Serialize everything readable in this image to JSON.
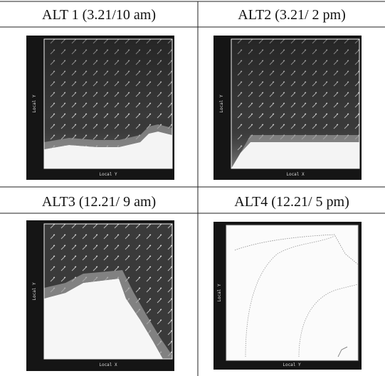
{
  "cells": [
    {
      "title": "ALT 1 (3.21/10 am)",
      "x_label": "Local Y",
      "y_label": "Local Y"
    },
    {
      "title": "ALT2 (3.21/ 2 pm)",
      "x_label": "Local X",
      "y_label": "Local Y"
    },
    {
      "title": "ALT3 (12.21/ 9 am)",
      "x_label": "Local X",
      "y_label": "Local Y"
    },
    {
      "title": "ALT4 (12.21/ 5 pm)",
      "x_label": "Local Y",
      "y_label": "Local Y"
    }
  ]
}
